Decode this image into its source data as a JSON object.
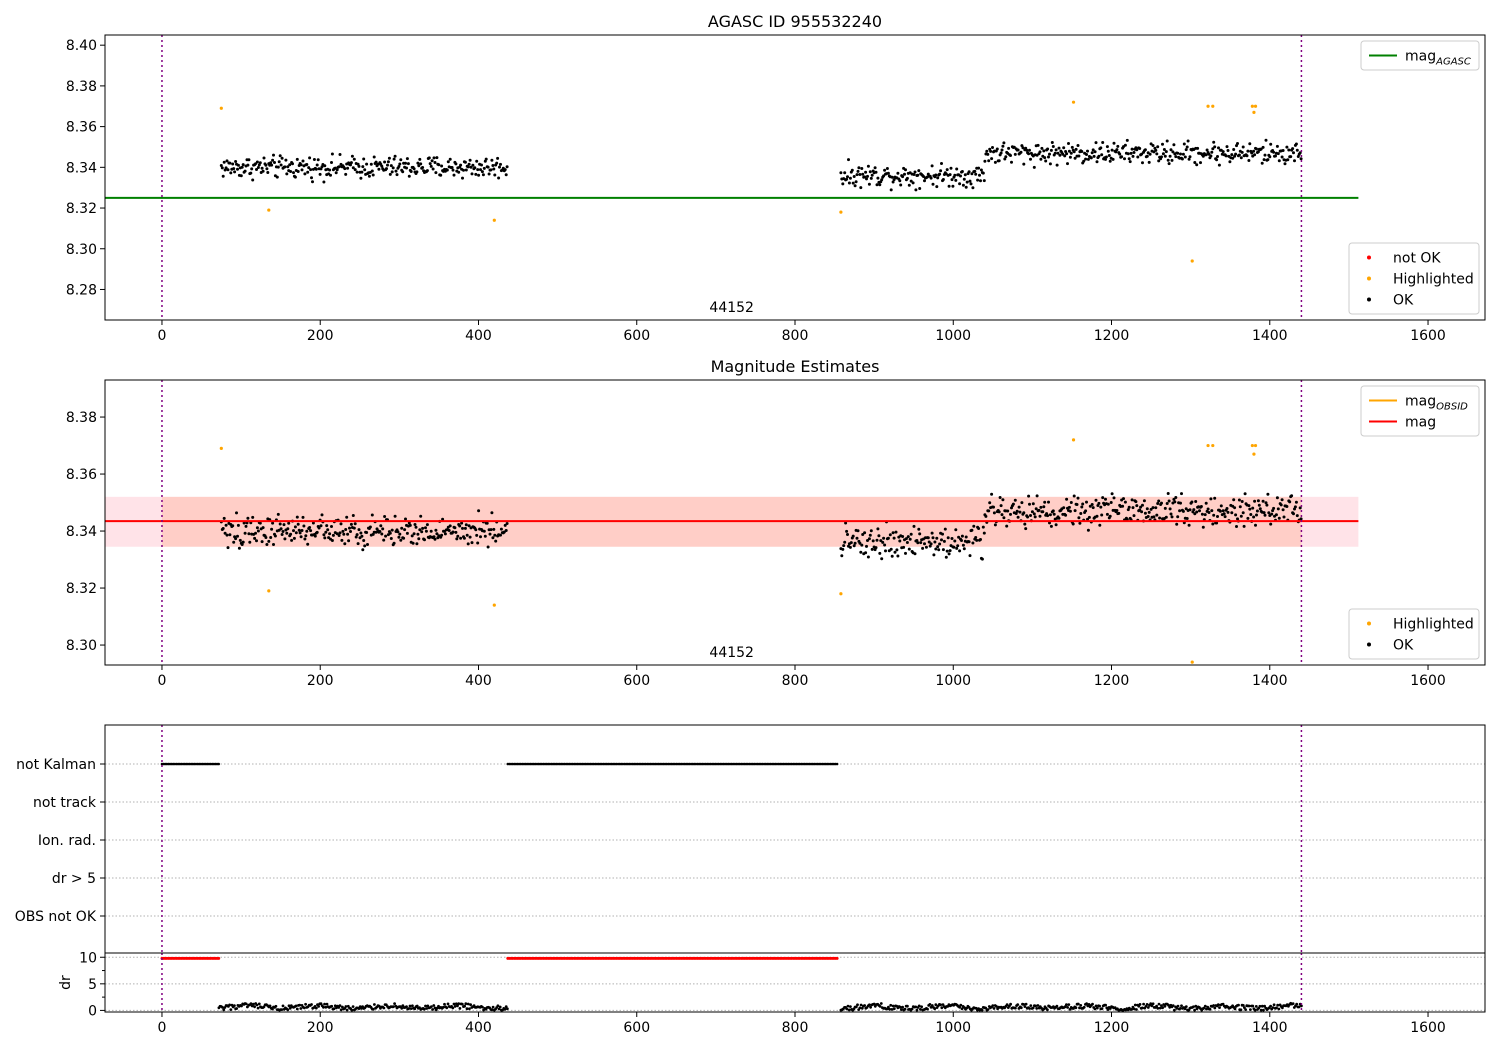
{
  "chart_data": [
    {
      "type": "scatter",
      "title": "AGASC ID 955532240",
      "annotation": "44152",
      "xlim": [
        -72,
        1672
      ],
      "ylim": [
        8.265,
        8.405
      ],
      "xticks": [
        0,
        200,
        400,
        600,
        800,
        1000,
        1200,
        1400,
        1600
      ],
      "yticks": [
        8.28,
        8.3,
        8.32,
        8.34,
        8.36,
        8.38,
        8.4
      ],
      "yticks_labels": [
        "8.28",
        "8.30",
        "8.32",
        "8.34",
        "8.36",
        "8.38",
        "8.40"
      ],
      "vlines": [
        0,
        1440
      ],
      "hline": {
        "y": 8.325,
        "x": [
          -72,
          1512
        ],
        "label": "mag",
        "sub": "AGASC",
        "color": "#008000"
      },
      "legend_top": [
        {
          "label": "mag",
          "sub": "AGASC",
          "color": "#008000",
          "kind": "line"
        }
      ],
      "legend_bottom": [
        {
          "label": "not OK",
          "color": "#ff0000",
          "kind": "dot"
        },
        {
          "label": "Highlighted",
          "color": "#ffa500",
          "kind": "dot"
        },
        {
          "label": "OK",
          "color": "#000000",
          "kind": "dot"
        }
      ],
      "highlighted_points": [
        [
          75,
          8.369
        ],
        [
          135,
          8.319
        ],
        [
          420,
          8.314
        ],
        [
          858,
          8.318
        ],
        [
          1152,
          8.372
        ],
        [
          1302,
          8.294
        ],
        [
          1322,
          8.37
        ],
        [
          1328,
          8.37
        ],
        [
          1378,
          8.37
        ],
        [
          1380,
          8.367
        ],
        [
          1382,
          8.37
        ]
      ],
      "ok_segments": [
        {
          "x": [
            75,
            437
          ],
          "base": 8.34,
          "spread": 0.008
        },
        {
          "x": [
            858,
            1040
          ],
          "base": 8.336,
          "spread": 0.008
        },
        {
          "x": [
            1040,
            1440
          ],
          "base": 8.347,
          "spread": 0.008
        }
      ]
    },
    {
      "type": "scatter",
      "title": "Magnitude Estimates",
      "annotation": "44152",
      "xlim": [
        -72,
        1672
      ],
      "ylim": [
        8.293,
        8.393
      ],
      "xticks": [
        0,
        200,
        400,
        600,
        800,
        1000,
        1200,
        1400,
        1600
      ],
      "yticks": [
        8.3,
        8.32,
        8.34,
        8.36,
        8.38
      ],
      "yticks_labels": [
        "8.30",
        "8.32",
        "8.34",
        "8.36",
        "8.38"
      ],
      "vlines": [
        0,
        1440
      ],
      "hline": {
        "y": 8.3435,
        "x": [
          -72,
          1512
        ],
        "label": "mag",
        "color": "#ff0000"
      },
      "band": {
        "y": [
          8.3345,
          8.352
        ],
        "x": [
          -72,
          1512
        ],
        "color": "#ffc0cb",
        "color2": "#ffa07a"
      },
      "obsid_band": {
        "x": [
          0,
          1440
        ]
      },
      "legend_top": [
        {
          "label": "mag",
          "sub": "OBSID",
          "color": "#ffa500",
          "kind": "line"
        },
        {
          "label": "mag",
          "color": "#ff0000",
          "kind": "line"
        }
      ],
      "legend_bottom": [
        {
          "label": "Highlighted",
          "color": "#ffa500",
          "kind": "dot"
        },
        {
          "label": "OK",
          "color": "#000000",
          "kind": "dot"
        }
      ],
      "highlighted_points": [
        [
          75,
          8.369
        ],
        [
          135,
          8.319
        ],
        [
          420,
          8.314
        ],
        [
          858,
          8.318
        ],
        [
          1152,
          8.372
        ],
        [
          1302,
          8.294
        ],
        [
          1322,
          8.37
        ],
        [
          1328,
          8.37
        ],
        [
          1378,
          8.37
        ],
        [
          1380,
          8.367
        ],
        [
          1382,
          8.37
        ]
      ],
      "ok_segments": [
        {
          "x": [
            75,
            437
          ],
          "base": 8.34,
          "spread": 0.008
        },
        {
          "x": [
            858,
            1040
          ],
          "base": 8.336,
          "spread": 0.008
        },
        {
          "x": [
            1040,
            1440
          ],
          "base": 8.347,
          "spread": 0.008
        }
      ]
    },
    {
      "type": "scatter",
      "title": "",
      "xlim": [
        -72,
        1672
      ],
      "categories": [
        "not Kalman",
        "not track",
        "Ion. rad.",
        "dr > 5",
        "OBS not OK"
      ],
      "vlines": [
        0,
        1440
      ],
      "flags": {
        "not Kalman": [
          [
            0,
            72
          ],
          [
            437,
            855
          ]
        ],
        "not track": [],
        "Ion. rad.": [],
        "dr > 5": [],
        "OBS not OK": []
      }
    },
    {
      "type": "scatter",
      "title": "",
      "ylabel": "dr",
      "xlim": [
        -72,
        1672
      ],
      "ylim": [
        -0.3,
        10.8
      ],
      "xticks": [
        0,
        200,
        400,
        600,
        800,
        1000,
        1200,
        1400,
        1600
      ],
      "yticks": [
        0,
        5,
        10
      ],
      "yticks_labels": [
        "0",
        "5",
        "10"
      ],
      "vlines": [
        0,
        1440
      ],
      "clipped": {
        "y": 9.8,
        "x": [
          [
            0,
            72
          ],
          [
            437,
            855
          ]
        ],
        "color": "#ff0000"
      },
      "dr_segments": [
        {
          "x": [
            72,
            437
          ],
          "base": 0.6,
          "spread": 0.5
        },
        {
          "x": [
            858,
            1440
          ],
          "base": 0.6,
          "spread": 0.5
        }
      ]
    }
  ]
}
